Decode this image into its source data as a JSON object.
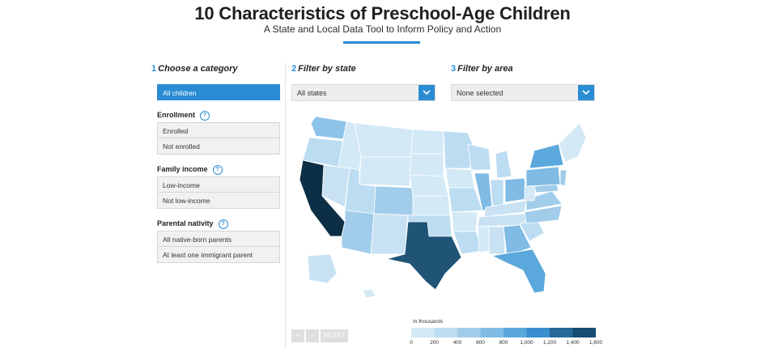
{
  "header": {
    "title": "10 Characteristics of Preschool-Age Children",
    "subtitle": "A State and Local Data Tool to Inform Policy and Action"
  },
  "steps": [
    {
      "num": "1",
      "label": "Choose a category"
    },
    {
      "num": "2",
      "label": "Filter by state"
    },
    {
      "num": "3",
      "label": "Filter by area"
    }
  ],
  "categories": {
    "all_label": "All children",
    "groups": [
      {
        "title": "Enrollment",
        "options": [
          "Enrolled",
          "Not enrolled"
        ]
      },
      {
        "title": "Family income",
        "options": [
          "Low-income",
          "Not low-income"
        ]
      },
      {
        "title": "Parental nativity",
        "options": [
          "All native-born parents",
          "At least one immigrant parent"
        ]
      }
    ]
  },
  "filters": {
    "state_value": "All states",
    "area_value": "None selected"
  },
  "map_controls": {
    "zoom_in": "+",
    "zoom_out": "-",
    "reset": "RESET"
  },
  "legend": {
    "title": "In thousands",
    "ticks": [
      "0",
      "200",
      "400",
      "600",
      "800",
      "1,000",
      "1,200",
      "1,400",
      "1,600"
    ],
    "colors": [
      "#d3e9f6",
      "#bcdcf1",
      "#a1cdeb",
      "#7fbbe4",
      "#5aa8dc",
      "#3a8fcf",
      "#27699a",
      "#184c70",
      "#0c2f45"
    ]
  },
  "colors": {
    "accent": "#2a8dd4"
  }
}
